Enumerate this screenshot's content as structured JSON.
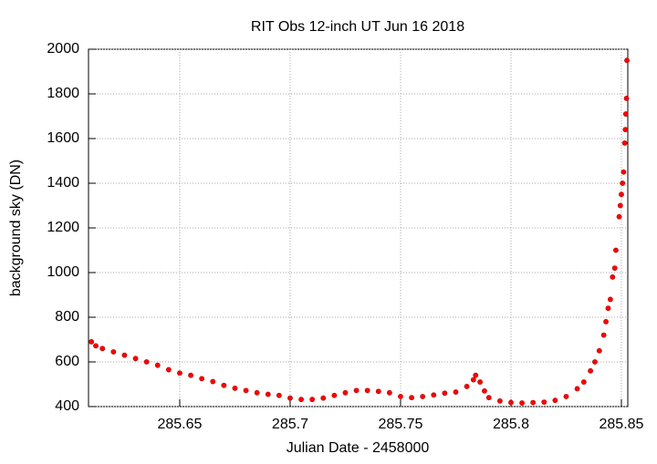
{
  "chart_data": {
    "type": "scatter",
    "title": "RIT Obs 12-inch UT Jun 16 2018",
    "x_label": "Julian Date - 2458000",
    "y_label": "background sky (DN)",
    "xlim": [
      285.6087,
      285.8529
    ],
    "ylim": [
      400,
      2000
    ],
    "xticks": [
      285.65,
      285.7,
      285.75,
      285.8,
      285.85
    ],
    "yticks": [
      400,
      600,
      800,
      1000,
      1200,
      1400,
      1600,
      1800,
      2000
    ],
    "grid": true,
    "color": "#ff0000",
    "x": [
      285.61,
      285.612,
      285.615,
      285.62,
      285.625,
      285.63,
      285.635,
      285.64,
      285.645,
      285.65,
      285.655,
      285.66,
      285.665,
      285.67,
      285.675,
      285.68,
      285.685,
      285.69,
      285.695,
      285.7,
      285.705,
      285.71,
      285.715,
      285.72,
      285.725,
      285.73,
      285.735,
      285.74,
      285.745,
      285.75,
      285.755,
      285.76,
      285.765,
      285.77,
      285.775,
      285.78,
      285.783,
      285.784,
      285.786,
      285.788,
      285.79,
      285.795,
      285.8,
      285.805,
      285.81,
      285.815,
      285.82,
      285.825,
      285.83,
      285.833,
      285.836,
      285.838,
      285.84,
      285.842,
      285.843,
      285.844,
      285.845,
      285.846,
      285.847,
      285.8475,
      285.849,
      285.8495,
      285.85,
      285.8505,
      285.851,
      285.8515,
      285.8518,
      285.852,
      285.8523,
      285.8525
    ],
    "values": [
      690,
      672,
      660,
      645,
      630,
      615,
      600,
      585,
      565,
      550,
      540,
      525,
      512,
      495,
      482,
      472,
      462,
      455,
      450,
      438,
      432,
      432,
      438,
      450,
      462,
      472,
      472,
      468,
      462,
      445,
      440,
      445,
      452,
      460,
      465,
      490,
      520,
      540,
      510,
      470,
      440,
      425,
      418,
      416,
      418,
      420,
      428,
      445,
      480,
      510,
      560,
      600,
      650,
      720,
      780,
      840,
      880,
      980,
      1020,
      1100,
      1250,
      1300,
      1350,
      1400,
      1450,
      1580,
      1640,
      1710,
      1780,
      1950
    ]
  }
}
